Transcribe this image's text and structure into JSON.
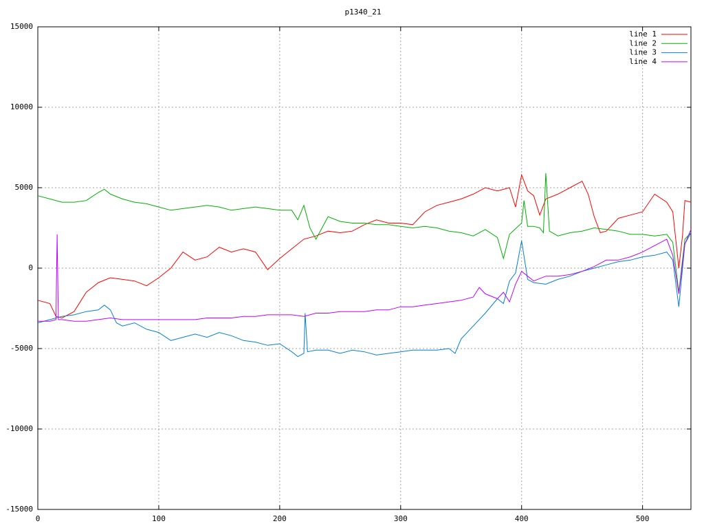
{
  "chart_data": {
    "type": "line",
    "title": "p1340_21",
    "xlim": [
      0,
      540
    ],
    "xticks": [
      0,
      100,
      200,
      300,
      400,
      500
    ],
    "ylim": [
      -15000,
      15000
    ],
    "yticks": [
      -15000,
      -10000,
      -5000,
      0,
      5000,
      10000,
      15000
    ],
    "grid": true,
    "legend": "top-right",
    "series": [
      {
        "name": "line 1",
        "color": "#ff0000",
        "x": [
          0,
          10,
          15,
          20,
          30,
          40,
          50,
          60,
          70,
          80,
          90,
          100,
          110,
          120,
          130,
          140,
          150,
          160,
          170,
          180,
          190,
          200,
          210,
          220,
          230,
          240,
          250,
          260,
          270,
          280,
          290,
          300,
          310,
          320,
          330,
          340,
          350,
          360,
          370,
          380,
          390,
          395,
          400,
          405,
          410,
          415,
          420,
          430,
          440,
          450,
          455,
          460,
          465,
          470,
          480,
          490,
          500,
          510,
          520,
          525,
          530,
          533,
          535,
          540
        ],
        "values": [
          -2000,
          -2200,
          -3000,
          -3100,
          -2700,
          -1500,
          -900,
          -600,
          -700,
          -800,
          -1100,
          -600,
          0,
          1000,
          500,
          700,
          1300,
          1000,
          1200,
          1000,
          -100,
          600,
          1200,
          1800,
          2000,
          2300,
          2200,
          2300,
          2700,
          3000,
          2800,
          2800,
          2700,
          3500,
          3900,
          4100,
          4300,
          4600,
          5000,
          4800,
          5000,
          3800,
          5800,
          4800,
          4500,
          3300,
          4300,
          4600,
          5000,
          5400,
          4600,
          3200,
          2200,
          2300,
          3100,
          3300,
          3500,
          4600,
          4100,
          3500,
          0,
          2000,
          4200,
          4100
        ]
      },
      {
        "name": "line 2",
        "color": "#00b000",
        "x": [
          0,
          10,
          20,
          30,
          40,
          50,
          55,
          60,
          70,
          80,
          90,
          100,
          110,
          120,
          130,
          140,
          150,
          160,
          170,
          180,
          190,
          200,
          210,
          215,
          220,
          225,
          230,
          240,
          250,
          260,
          270,
          280,
          290,
          300,
          310,
          320,
          330,
          340,
          350,
          360,
          370,
          380,
          385,
          390,
          400,
          402,
          405,
          410,
          415,
          418,
          420,
          423,
          430,
          440,
          450,
          460,
          470,
          480,
          490,
          500,
          510,
          520,
          525,
          530,
          535,
          540
        ],
        "values": [
          4500,
          4300,
          4100,
          4100,
          4200,
          4700,
          4900,
          4600,
          4300,
          4100,
          4000,
          3800,
          3600,
          3700,
          3800,
          3900,
          3800,
          3600,
          3700,
          3800,
          3700,
          3600,
          3600,
          3000,
          3900,
          2500,
          1800,
          3200,
          2900,
          2800,
          2800,
          2700,
          2700,
          2600,
          2500,
          2600,
          2500,
          2300,
          2200,
          2000,
          2400,
          1900,
          600,
          2100,
          2800,
          4200,
          2600,
          2600,
          2500,
          2200,
          5900,
          2300,
          2000,
          2200,
          2300,
          2500,
          2400,
          2300,
          2100,
          2100,
          2000,
          2100,
          1600,
          -1500,
          1800,
          2200
        ]
      },
      {
        "name": "line 3",
        "color": "#0080d0",
        "x": [
          0,
          10,
          20,
          30,
          40,
          50,
          55,
          60,
          65,
          70,
          80,
          90,
          100,
          110,
          120,
          130,
          140,
          150,
          160,
          170,
          180,
          190,
          200,
          210,
          215,
          220,
          221,
          223,
          230,
          240,
          250,
          260,
          270,
          280,
          290,
          300,
          310,
          320,
          330,
          340,
          345,
          350,
          360,
          370,
          380,
          385,
          390,
          395,
          400,
          405,
          410,
          420,
          430,
          440,
          450,
          460,
          470,
          480,
          490,
          500,
          510,
          520,
          525,
          530,
          535,
          540
        ],
        "values": [
          -3400,
          -3200,
          -3000,
          -2900,
          -2700,
          -2600,
          -2300,
          -2600,
          -3400,
          -3600,
          -3400,
          -3800,
          -4000,
          -4500,
          -4300,
          -4100,
          -4300,
          -4000,
          -4200,
          -4500,
          -4600,
          -4800,
          -4700,
          -5200,
          -5500,
          -5300,
          -2800,
          -5200,
          -5100,
          -5100,
          -5300,
          -5100,
          -5200,
          -5400,
          -5300,
          -5200,
          -5100,
          -5100,
          -5100,
          -5000,
          -5300,
          -4400,
          -3600,
          -2800,
          -1900,
          -2200,
          -800,
          -300,
          1700,
          -700,
          -900,
          -1000,
          -700,
          -500,
          -200,
          0,
          200,
          400,
          500,
          700,
          800,
          1000,
          500,
          -2400,
          1500,
          2200
        ]
      },
      {
        "name": "line 4",
        "color": "#c000ff",
        "x": [
          0,
          10,
          15,
          16,
          17,
          20,
          30,
          40,
          50,
          60,
          70,
          80,
          90,
          100,
          110,
          120,
          130,
          140,
          150,
          160,
          170,
          180,
          190,
          200,
          210,
          220,
          230,
          240,
          250,
          260,
          270,
          280,
          290,
          300,
          310,
          320,
          330,
          340,
          350,
          360,
          365,
          370,
          380,
          385,
          390,
          395,
          400,
          410,
          420,
          430,
          440,
          450,
          460,
          470,
          480,
          490,
          500,
          510,
          520,
          525,
          530,
          535,
          540
        ],
        "values": [
          -3300,
          -3300,
          -3200,
          2100,
          -3200,
          -3200,
          -3300,
          -3300,
          -3200,
          -3100,
          -3200,
          -3200,
          -3200,
          -3200,
          -3200,
          -3200,
          -3200,
          -3100,
          -3100,
          -3100,
          -3000,
          -3000,
          -2900,
          -2900,
          -2900,
          -3000,
          -2800,
          -2800,
          -2700,
          -2700,
          -2700,
          -2600,
          -2600,
          -2400,
          -2400,
          -2300,
          -2200,
          -2100,
          -2000,
          -1800,
          -1200,
          -1600,
          -1900,
          -1500,
          -2100,
          -1000,
          -200,
          -800,
          -500,
          -500,
          -400,
          -200,
          100,
          500,
          500,
          700,
          1000,
          1400,
          1800,
          800,
          -1600,
          1500,
          2400
        ]
      }
    ]
  }
}
